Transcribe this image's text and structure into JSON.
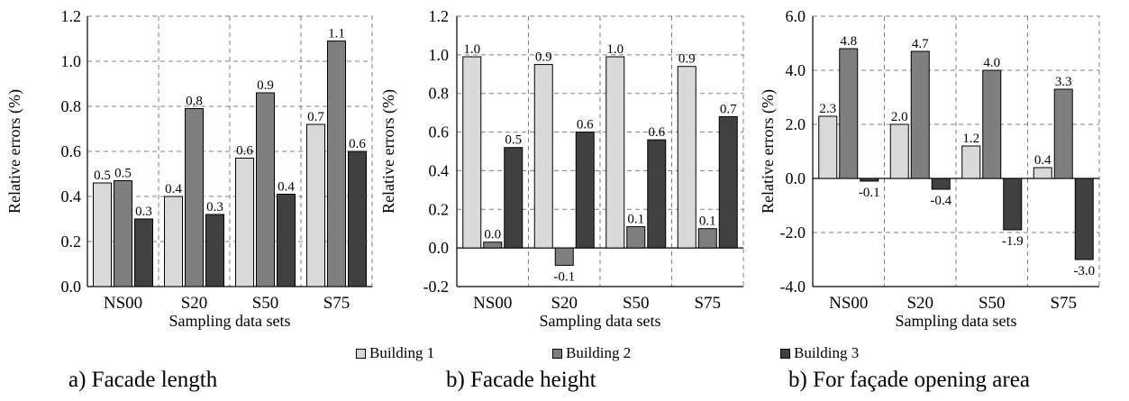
{
  "colors": {
    "building1": "#d9d9d9",
    "building2": "#7f7f7f",
    "building3": "#404040",
    "grid": "#808080"
  },
  "legend": {
    "items": [
      "Building 1",
      "Building 2",
      "Building 3"
    ]
  },
  "chart_data": [
    {
      "type": "bar",
      "caption": "a) Facade length",
      "categories": [
        "NS00",
        "S20",
        "S50",
        "S75"
      ],
      "series": [
        {
          "name": "Building 1",
          "values": [
            0.46,
            0.4,
            0.57,
            0.72
          ],
          "labels": [
            "0.5",
            "0.4",
            "0.6",
            "0.7"
          ]
        },
        {
          "name": "Building 2",
          "values": [
            0.47,
            0.79,
            0.86,
            1.09
          ],
          "labels": [
            "0.5",
            "0.8",
            "0.9",
            "1.1"
          ]
        },
        {
          "name": "Building 3",
          "values": [
            0.3,
            0.32,
            0.41,
            0.6
          ],
          "labels": [
            "0.3",
            "0.3",
            "0.4",
            "0.6"
          ]
        }
      ],
      "xlabel": "Sampling data sets",
      "ylabel": "Relative errors (%)",
      "ylim": [
        0.0,
        1.2
      ],
      "yticks": [
        "0.0",
        "0.2",
        "0.4",
        "0.6",
        "0.8",
        "1.0",
        "1.2"
      ],
      "grid": true
    },
    {
      "type": "bar",
      "caption": "b) Facade height",
      "categories": [
        "NS00",
        "S20",
        "S50",
        "S75"
      ],
      "series": [
        {
          "name": "Building 1",
          "values": [
            0.99,
            0.95,
            0.99,
            0.94
          ],
          "labels": [
            "1.0",
            "0.9",
            "1.0",
            "0.9"
          ]
        },
        {
          "name": "Building 2",
          "values": [
            0.03,
            -0.09,
            0.11,
            0.1
          ],
          "labels": [
            "0.0",
            "-0.1",
            "0.1",
            "0.1"
          ]
        },
        {
          "name": "Building 3",
          "values": [
            0.52,
            0.6,
            0.56,
            0.68
          ],
          "labels": [
            "0.5",
            "0.6",
            "0.6",
            "0.7"
          ]
        }
      ],
      "xlabel": "Sampling data sets",
      "ylabel": "Relative errors (%)",
      "ylim": [
        -0.2,
        1.2
      ],
      "yticks": [
        "-0.2",
        "0.0",
        "0.2",
        "0.4",
        "0.6",
        "0.8",
        "1.0",
        "1.2"
      ],
      "grid": true
    },
    {
      "type": "bar",
      "caption": "b) For façade opening area",
      "categories": [
        "NS00",
        "S20",
        "S50",
        "S75"
      ],
      "series": [
        {
          "name": "Building 1",
          "values": [
            2.3,
            2.0,
            1.2,
            0.4
          ],
          "labels": [
            "2.3",
            "2.0",
            "1.2",
            "0.4"
          ]
        },
        {
          "name": "Building 2",
          "values": [
            4.8,
            4.7,
            4.0,
            3.3
          ],
          "labels": [
            "4.8",
            "4.7",
            "4.0",
            "3.3"
          ]
        },
        {
          "name": "Building 3",
          "values": [
            -0.1,
            -0.4,
            -1.9,
            -3.0
          ],
          "labels": [
            "-0.1",
            "-0.4",
            "-1.9",
            "-3.0"
          ]
        }
      ],
      "xlabel": "Sampling data sets",
      "ylabel": "Relative errors (%)",
      "ylim": [
        -4.0,
        6.0
      ],
      "yticks": [
        "-4.0",
        "-2.0",
        "0.0",
        "2.0",
        "4.0",
        "6.0"
      ],
      "grid": true
    }
  ]
}
